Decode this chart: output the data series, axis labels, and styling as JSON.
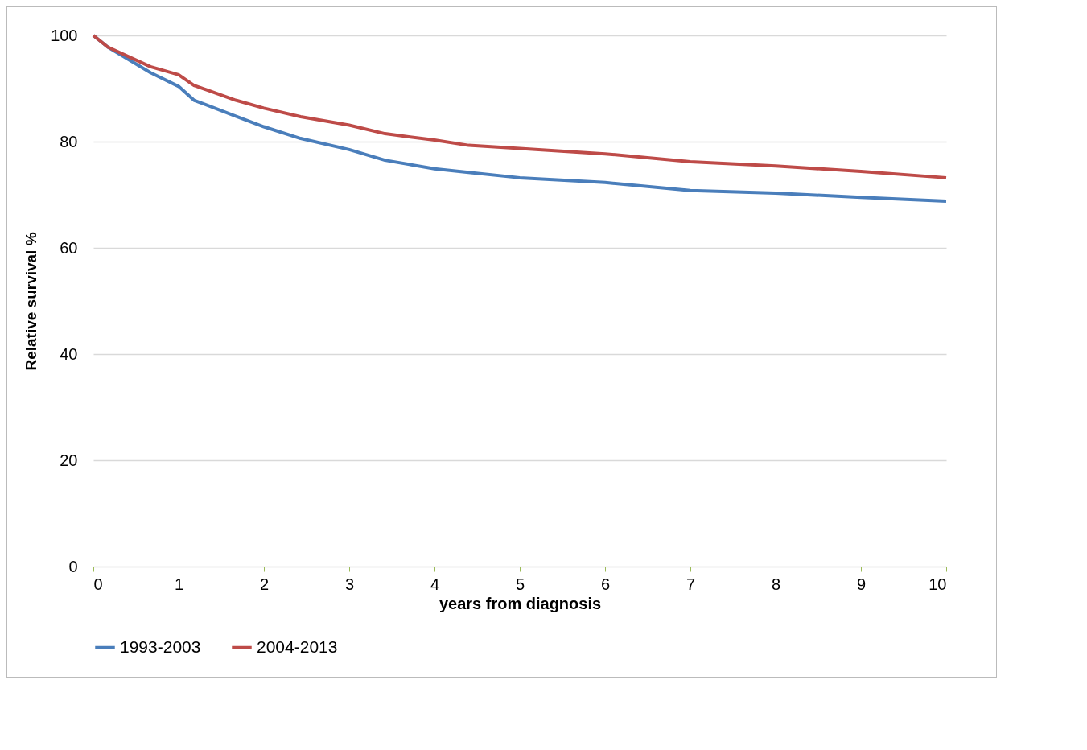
{
  "chart_data": {
    "type": "line",
    "xlabel": "years from diagnosis",
    "ylabel": "Relative survival %",
    "xlim": [
      0,
      10
    ],
    "xticks": [
      0,
      1,
      2,
      3,
      4,
      5,
      6,
      7,
      8,
      9,
      10
    ],
    "ylim": [
      0,
      100
    ],
    "yticks": [
      0,
      20,
      40,
      60,
      80,
      100
    ],
    "grid": "y",
    "legend": "bottom",
    "marker": "none",
    "line_style": "solid",
    "series": [
      {
        "name": "1993-2003",
        "color": "#4a7ebb",
        "x": [
          0,
          0.17,
          0.67,
          1.0,
          1.18,
          1.67,
          2,
          2.43,
          3,
          3.42,
          4,
          4.4,
          5,
          6,
          7,
          8,
          9,
          10
        ],
        "values": [
          100,
          97.8,
          93,
          90.4,
          87.8,
          84.8,
          82.8,
          80.6,
          78.5,
          76.5,
          74.9,
          74.2,
          73.2,
          72.3,
          70.8,
          70.3,
          69.5,
          68.8
        ]
      },
      {
        "name": "2004-2013",
        "color": "#be4b48",
        "x": [
          0,
          0.17,
          0.67,
          1.0,
          1.18,
          1.67,
          2,
          2.43,
          3,
          3.42,
          4,
          4.4,
          5,
          6,
          7,
          8,
          9,
          10
        ],
        "values": [
          100,
          97.8,
          94.1,
          92.6,
          90.6,
          87.8,
          86.3,
          84.7,
          83.1,
          81.5,
          80.3,
          79.3,
          78.7,
          77.7,
          76.2,
          75.4,
          74.4,
          73.2
        ]
      }
    ]
  }
}
